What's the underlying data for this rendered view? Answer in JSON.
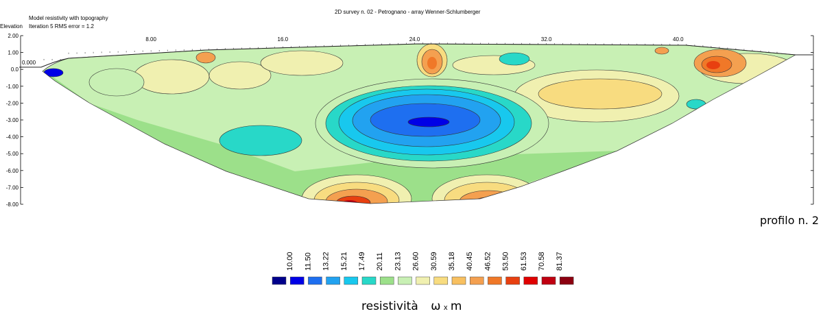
{
  "header": {
    "model_title": "Model resistivity with topography",
    "iteration_text": "Iteration 5 RMS error = 1.2",
    "survey_title": "2D survey n. 02 - Petrognano - array Wenner-Schlumberger",
    "elevation_label": "Elevation"
  },
  "profile_label": "profilo n. 2",
  "units": {
    "word": "resistività",
    "omega": "ω",
    "times": "x",
    "meter": "m"
  },
  "chart_data": {
    "type": "heatmap",
    "title": "2D survey n. 02 - Petrognano - array Wenner-Schlumberger",
    "subtitle": "Model resistivity with topography",
    "ylabel": "Elevation",
    "x_ticks": [
      {
        "value": 0,
        "label": "0.000"
      },
      {
        "value": 8,
        "label": "8.00"
      },
      {
        "value": 16,
        "label": "16.0"
      },
      {
        "value": 24,
        "label": "24.0"
      },
      {
        "value": 32,
        "label": "32.0"
      },
      {
        "value": 40,
        "label": "40.0"
      }
    ],
    "y_ticks": [
      2,
      1,
      0,
      -1,
      -2,
      -3,
      -4,
      -5,
      -6,
      -7,
      -8
    ],
    "y_tick_labels": [
      "2.00",
      "1.00",
      "0.0",
      "-1.00",
      "-2.00",
      "-3.00",
      "-4.00",
      "-5.00",
      "-6.00",
      "-7.00",
      "-8.00"
    ],
    "xlim": [
      0,
      47
    ],
    "ylim": [
      -8,
      2
    ],
    "legend": {
      "values": [
        "10.00",
        "11.50",
        "13.22",
        "15.21",
        "17.49",
        "20.11",
        "23.13",
        "26.60",
        "30.59",
        "35.18",
        "40.45",
        "46.52",
        "53.50",
        "61.53",
        "70.58",
        "81.37"
      ],
      "colors": [
        "#00008b",
        "#0000e6",
        "#1e6ff0",
        "#22a2f0",
        "#18c8ee",
        "#28d8c8",
        "#9ce08a",
        "#c8f0b4",
        "#f0f0b0",
        "#f8dc80",
        "#f8c060",
        "#f4a050",
        "#f07828",
        "#e84010",
        "#e00000",
        "#c00010",
        "#8c0010"
      ]
    }
  }
}
